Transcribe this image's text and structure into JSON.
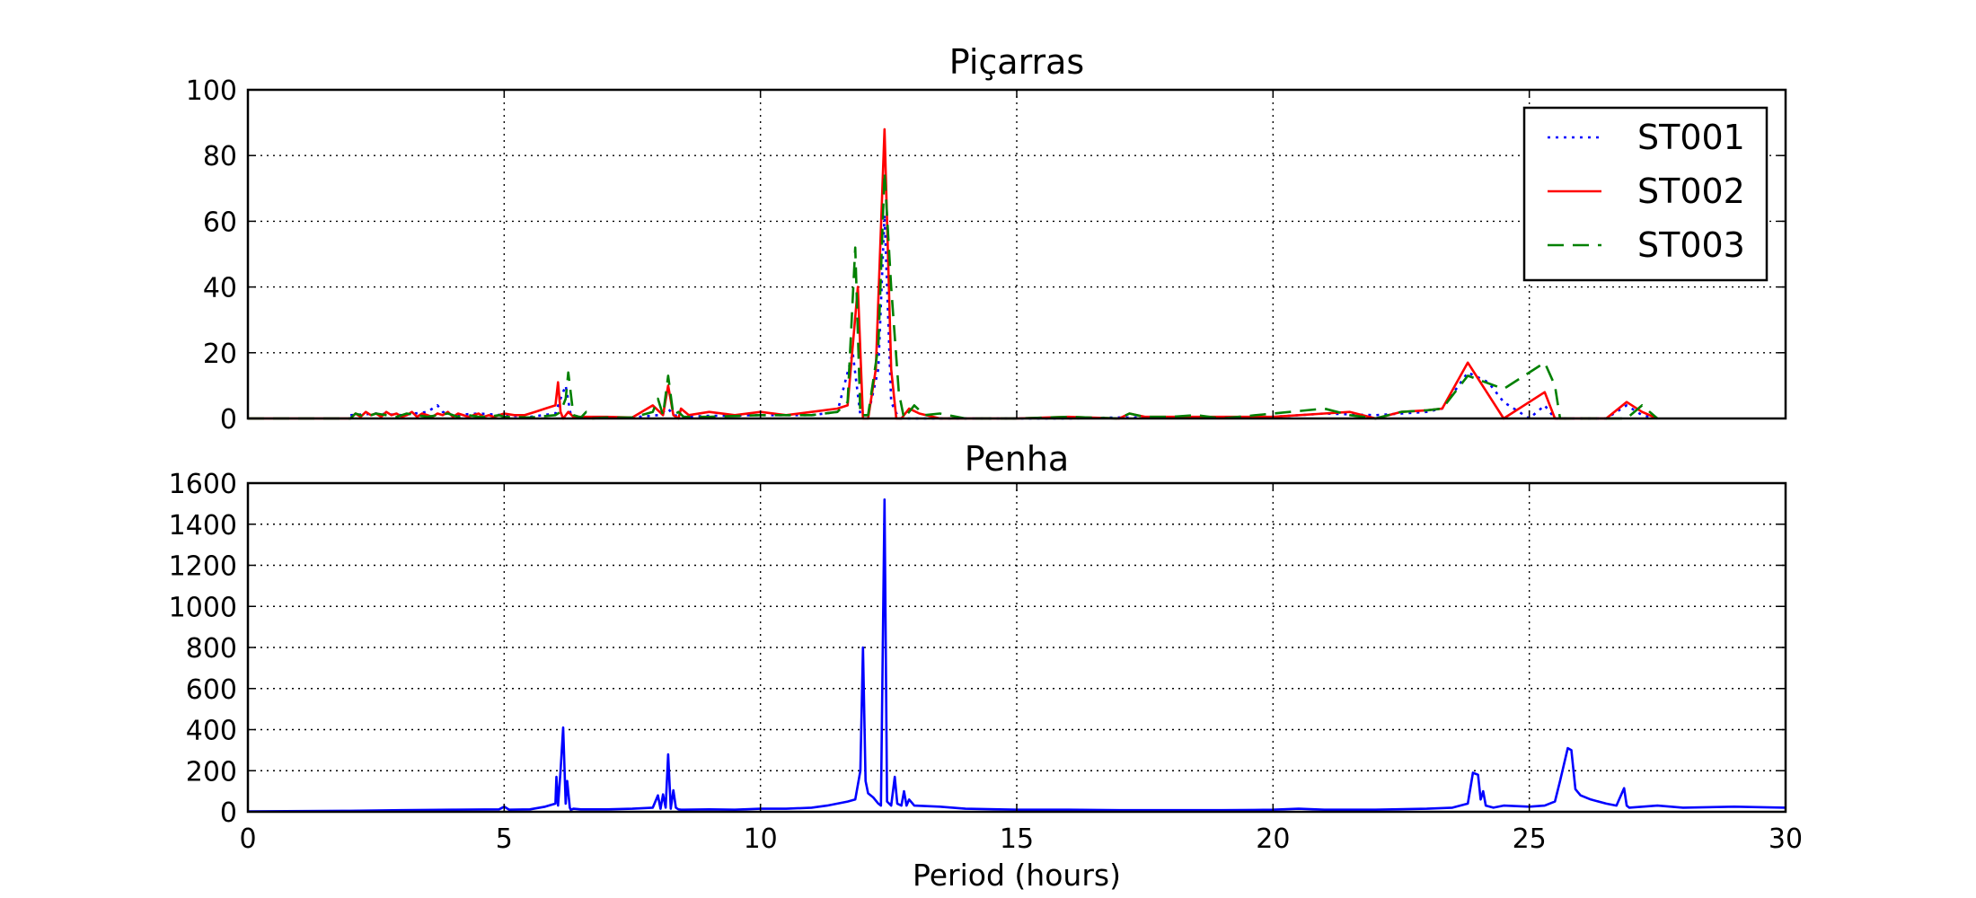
{
  "chart_data": [
    {
      "type": "line",
      "title": "Piçarras",
      "xlabel": "",
      "ylabel": "",
      "xlim": [
        0,
        30
      ],
      "ylim": [
        0,
        100
      ],
      "xticks": [
        0,
        5,
        10,
        15,
        20,
        25,
        30
      ],
      "xtick_labels_visible": false,
      "yticks": [
        0,
        20,
        40,
        60,
        80,
        100
      ],
      "grid": true,
      "legend_position": "top-right",
      "series": [
        {
          "name": "ST001",
          "color": "#0000ff",
          "style": "dotted",
          "x": [
            2,
            2.5,
            3,
            3.5,
            3.7,
            3.8,
            4,
            4.5,
            5,
            5.5,
            6,
            6.1,
            6.2,
            6.3,
            6.5,
            7,
            7.5,
            8,
            8.2,
            8.3,
            8.5,
            9,
            10,
            11,
            11.5,
            11.8,
            11.95,
            12.1,
            12.3,
            12.42,
            12.55,
            12.7,
            13,
            14,
            15,
            16,
            17,
            18,
            19,
            20,
            21,
            22,
            23,
            23.3,
            23.8,
            24.2,
            24.5,
            25,
            25.3,
            25.5,
            26.5,
            26.9,
            27.2,
            27.5
          ],
          "y": [
            1,
            1.5,
            1,
            2,
            4,
            2,
            1,
            1.5,
            1,
            0.5,
            1.5,
            6,
            10,
            1,
            0.5,
            0.3,
            0.3,
            1,
            3,
            1,
            0.5,
            0.8,
            1,
            1,
            2,
            20,
            1,
            1,
            15,
            62,
            5,
            0,
            0,
            0,
            0,
            0,
            0.3,
            0.3,
            0.3,
            0.5,
            1.5,
            1,
            2,
            3,
            14,
            11,
            5,
            0,
            4,
            0,
            0,
            4,
            1,
            0
          ]
        },
        {
          "name": "ST002",
          "color": "#ff0000",
          "style": "solid",
          "x": [
            0,
            2,
            2.1,
            2.2,
            2.3,
            2.4,
            2.5,
            2.6,
            2.7,
            2.8,
            2.9,
            3,
            3.1,
            3.2,
            3.3,
            3.4,
            3.5,
            3.6,
            3.7,
            3.8,
            3.9,
            4,
            4.1,
            4.2,
            4.3,
            4.4,
            4.5,
            4.6,
            4.7,
            4.8,
            4.9,
            5,
            5.2,
            5.4,
            5.6,
            5.8,
            6,
            6.05,
            6.1,
            6.15,
            6.25,
            6.35,
            6.5,
            7,
            7.5,
            7.9,
            8.1,
            8.2,
            8.3,
            8.4,
            8.45,
            8.6,
            9,
            9.5,
            10,
            10.5,
            11,
            11.5,
            11.7,
            11.9,
            12.0,
            12.1,
            12.25,
            12.42,
            12.55,
            12.65,
            12.75,
            12.9,
            13.1,
            13.5,
            14,
            15,
            16,
            17,
            17.2,
            17.5,
            18,
            18.5,
            19,
            20,
            21,
            21.5,
            22,
            22.5,
            23,
            23.3,
            23.8,
            24.5,
            25.3,
            25.5,
            26.5,
            26.9,
            27.2,
            27.5
          ],
          "y": [
            0,
            0,
            1.5,
            0.5,
            2,
            1,
            1.5,
            0.5,
            2,
            1,
            1.5,
            0.5,
            1,
            2,
            0.5,
            1.5,
            1,
            0.5,
            1.5,
            1,
            2,
            0.5,
            1.5,
            1,
            0.5,
            1,
            1.5,
            0.5,
            1,
            0.5,
            1,
            1.5,
            1,
            1,
            2,
            3,
            4,
            11,
            2,
            0,
            2,
            0.5,
            0.5,
            0.5,
            0.3,
            4,
            1,
            10,
            1,
            0,
            3,
            1,
            2,
            1,
            2,
            1,
            2,
            3,
            4,
            40,
            0,
            0,
            15,
            88,
            15,
            0,
            0,
            3,
            1.5,
            0,
            0,
            0,
            0.5,
            0,
            1.5,
            0.5,
            0.5,
            0.5,
            0.5,
            0.5,
            1.5,
            2,
            0,
            2,
            2.5,
            3,
            17,
            0,
            8,
            0,
            0,
            5,
            2,
            0
          ]
        },
        {
          "name": "ST003",
          "color": "#008000",
          "style": "dashed",
          "x": [
            0,
            2,
            2.1,
            2.3,
            2.5,
            2.7,
            2.9,
            3.1,
            3.3,
            3.5,
            3.7,
            3.9,
            4.1,
            4.3,
            4.5,
            4.7,
            4.9,
            5,
            5.5,
            6,
            6.1,
            6.2,
            6.25,
            6.35,
            6.5,
            6.6,
            6.7,
            7,
            7.5,
            7.9,
            8.0,
            8.1,
            8.2,
            8.3,
            8.4,
            8.5,
            9,
            10,
            11,
            11.5,
            11.7,
            11.85,
            11.95,
            12.1,
            12.3,
            12.42,
            12.55,
            12.7,
            12.8,
            13,
            13.2,
            13.5,
            14,
            15,
            16,
            17,
            17.2,
            17.5,
            18,
            18.5,
            19,
            20,
            21,
            21.5,
            22,
            22.5,
            23,
            23.3,
            23.8,
            24.5,
            25.3,
            25.5,
            25.6,
            26.5,
            26.9,
            27.2,
            27.5
          ],
          "y": [
            0,
            0,
            1.5,
            0.5,
            1.5,
            1,
            0.5,
            1.5,
            1,
            0.5,
            1,
            1.5,
            0.5,
            1,
            0.5,
            0.5,
            1,
            0.5,
            0.3,
            1,
            2,
            6,
            14,
            1,
            0.3,
            2,
            0,
            0.3,
            0.3,
            2,
            6,
            1,
            13,
            1,
            2,
            0.5,
            0.5,
            1,
            1,
            2,
            5,
            52,
            1,
            1,
            22,
            75,
            40,
            8,
            0,
            4,
            1,
            1.5,
            0,
            0,
            0.5,
            0,
            1.5,
            0.5,
            0.5,
            1,
            0,
            1.5,
            3,
            1,
            0,
            2,
            2.5,
            3,
            13,
            9,
            17,
            10,
            0,
            0,
            0,
            4,
            0
          ]
        }
      ]
    },
    {
      "type": "line",
      "title": "Penha",
      "xlabel": "Period (hours)",
      "ylabel": "",
      "xlim": [
        0,
        30
      ],
      "ylim": [
        0,
        1600
      ],
      "xticks": [
        0,
        5,
        10,
        15,
        20,
        25,
        30
      ],
      "yticks": [
        0,
        200,
        400,
        600,
        800,
        1000,
        1200,
        1400,
        1600
      ],
      "grid": true,
      "series": [
        {
          "color": "#0000ff",
          "style": "solid",
          "x": [
            0,
            2,
            3,
            4,
            4.9,
            5.0,
            5.1,
            5.5,
            5.8,
            6.0,
            6.02,
            6.05,
            6.1,
            6.15,
            6.2,
            6.23,
            6.28,
            6.3,
            6.35,
            6.5,
            7,
            7.5,
            7.9,
            8.0,
            8.05,
            8.1,
            8.15,
            8.2,
            8.25,
            8.3,
            8.35,
            8.4,
            8.45,
            8.5,
            9,
            9.5,
            10,
            10.5,
            11,
            11.3,
            11.5,
            11.7,
            11.85,
            11.95,
            12.0,
            12.05,
            12.1,
            12.2,
            12.3,
            12.35,
            12.42,
            12.47,
            12.55,
            12.62,
            12.67,
            12.75,
            12.8,
            12.85,
            12.9,
            13,
            13.5,
            14,
            15,
            16,
            17,
            18,
            19,
            20,
            20.5,
            21,
            22,
            23,
            23.5,
            23.8,
            23.9,
            24.0,
            24.05,
            24.1,
            24.15,
            24.3,
            24.5,
            25,
            25.3,
            25.5,
            25.6,
            25.75,
            25.82,
            25.9,
            26.0,
            26.2,
            26.5,
            26.7,
            26.85,
            26.9,
            26.95,
            27.5,
            28,
            29,
            30
          ],
          "y": [
            2,
            5,
            8,
            10,
            12,
            25,
            10,
            12,
            25,
            40,
            170,
            30,
            200,
            410,
            40,
            150,
            20,
            10,
            15,
            12,
            12,
            15,
            20,
            80,
            15,
            85,
            20,
            280,
            15,
            105,
            20,
            12,
            10,
            10,
            12,
            10,
            15,
            15,
            20,
            30,
            40,
            50,
            60,
            200,
            800,
            150,
            90,
            70,
            40,
            30,
            1520,
            50,
            30,
            170,
            40,
            30,
            100,
            30,
            60,
            30,
            25,
            15,
            10,
            10,
            8,
            8,
            8,
            10,
            15,
            10,
            10,
            15,
            20,
            40,
            190,
            180,
            60,
            100,
            30,
            20,
            30,
            25,
            30,
            50,
            150,
            310,
            300,
            110,
            80,
            60,
            40,
            30,
            115,
            30,
            20,
            30,
            20,
            25,
            20
          ]
        }
      ]
    }
  ]
}
